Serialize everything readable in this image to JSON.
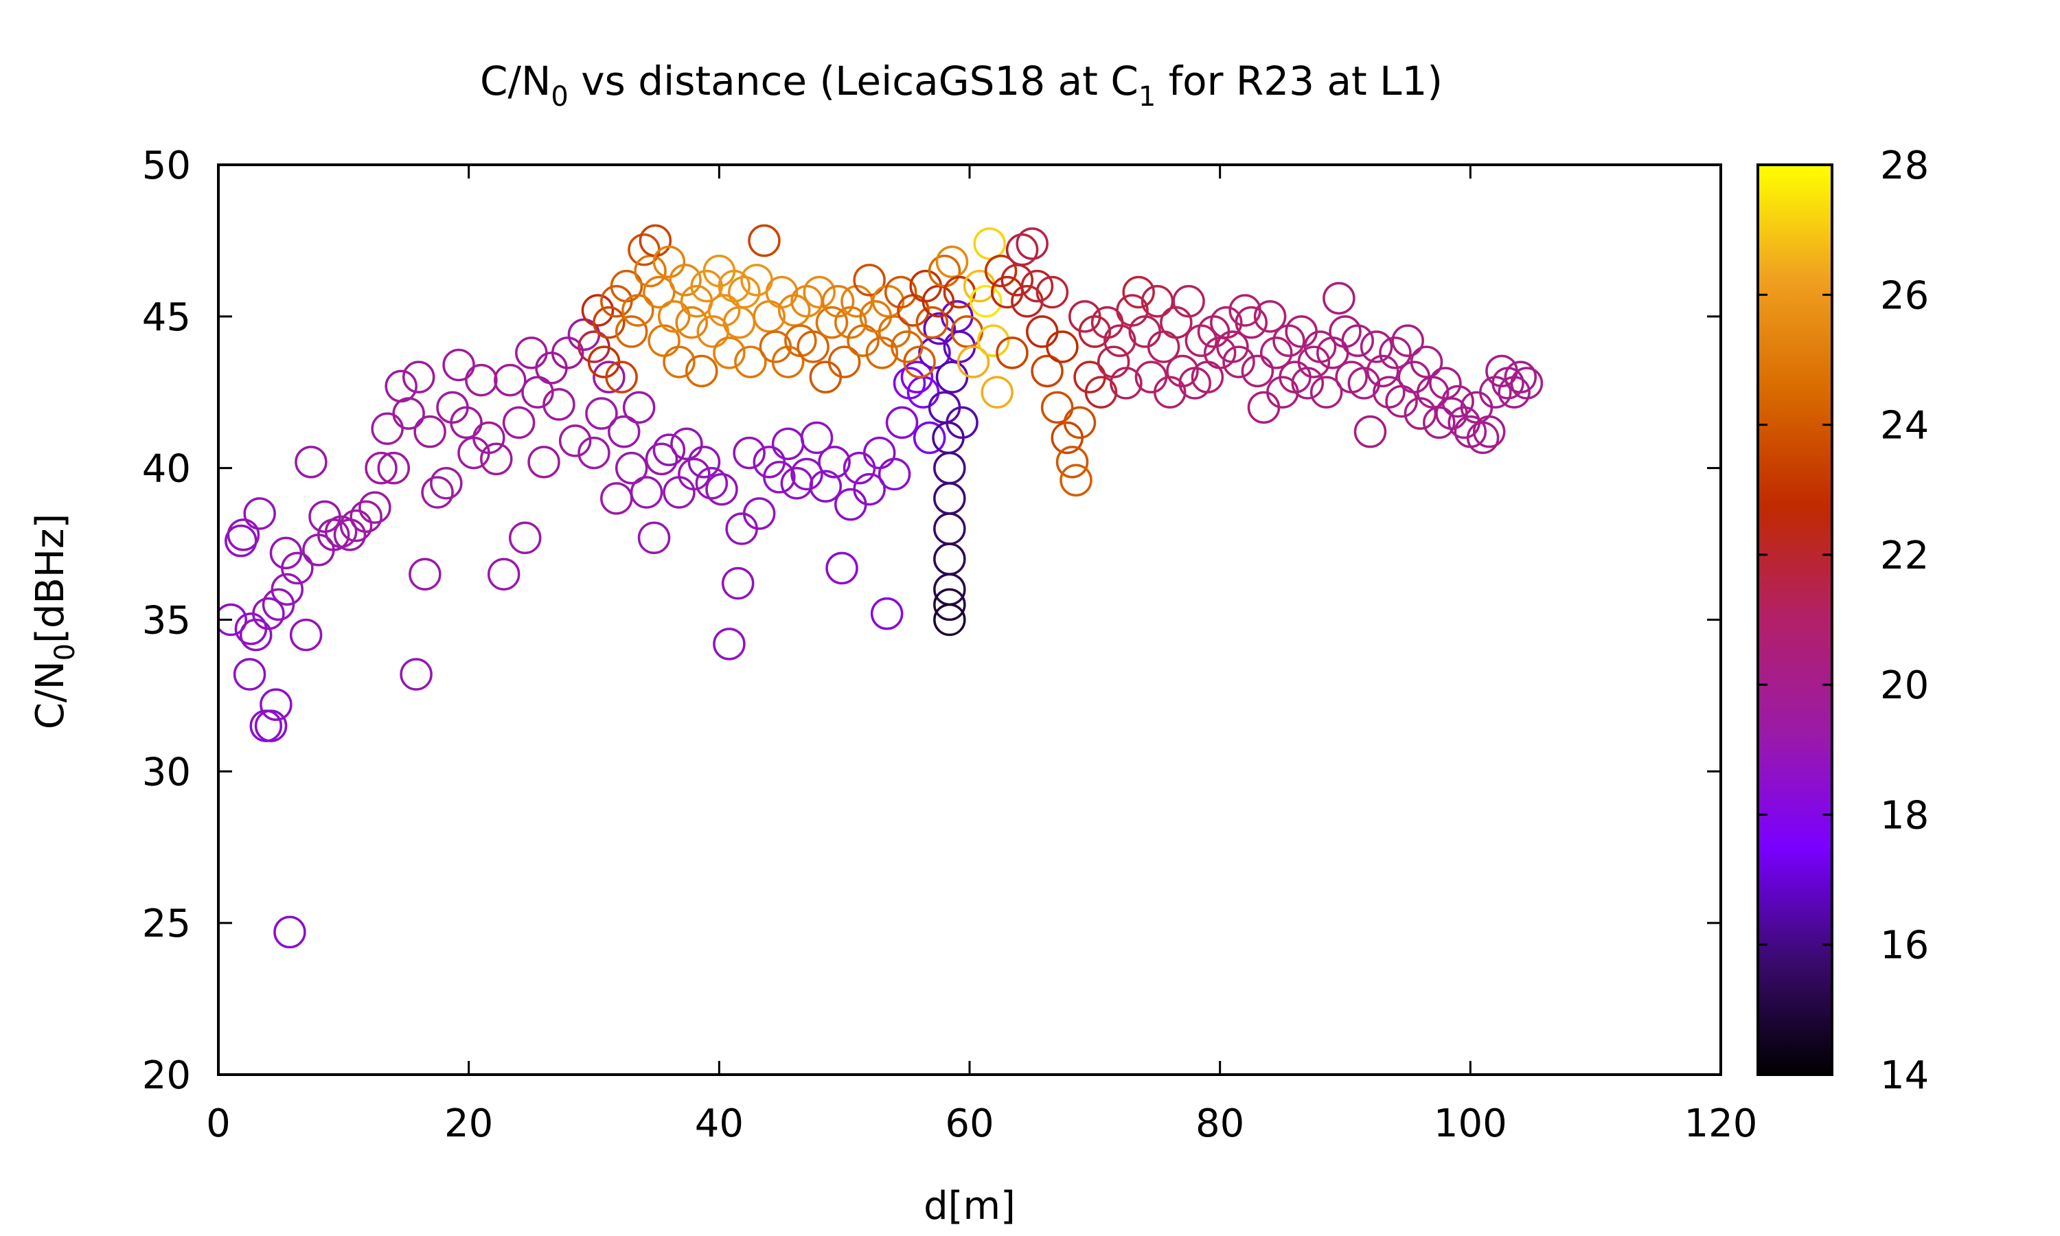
{
  "chart_data": {
    "type": "scatter",
    "title": "C/N0 vs distance (LeicaGS18 at C1 for R23 at L1)",
    "title_parts": {
      "a": "C/N",
      "a_sub": "0",
      "b": " vs distance (LeicaGS18 at C",
      "b_sub": "1",
      "c": " for R23 at L1)"
    },
    "xlabel": "d[m]",
    "ylabel": "C/N0[dBHz]",
    "ylabel_parts": {
      "a": "C/N",
      "a_sub": "0",
      "b": "[dBHz]"
    },
    "xlim": [
      0,
      120
    ],
    "ylim": [
      20,
      50
    ],
    "xticks": [
      0,
      20,
      40,
      60,
      80,
      100,
      120
    ],
    "yticks": [
      20,
      25,
      30,
      35,
      40,
      45,
      50
    ],
    "colorbar": {
      "range": [
        14,
        28
      ],
      "ticks": [
        14,
        16,
        18,
        20,
        22,
        24,
        26,
        28
      ],
      "palette": [
        "#000000",
        "#3a0a6e",
        "#7a00ff",
        "#9a1aa8",
        "#b3206a",
        "#c02a00",
        "#d86a00",
        "#f0a020",
        "#ffff00"
      ]
    },
    "grid": false,
    "marker": "open-circle",
    "points": [
      [
        1.0,
        35.0,
        18.6
      ],
      [
        1.8,
        37.6,
        18.7
      ],
      [
        2.0,
        37.8,
        18.8
      ],
      [
        2.6,
        34.7,
        18.6
      ],
      [
        3.0,
        34.5,
        18.7
      ],
      [
        3.3,
        38.5,
        18.9
      ],
      [
        2.5,
        33.2,
        18.6
      ],
      [
        3.8,
        31.5,
        18.5
      ],
      [
        4.2,
        31.5,
        18.4
      ],
      [
        4.6,
        32.2,
        18.6
      ],
      [
        4.0,
        35.2,
        18.8
      ],
      [
        4.8,
        35.5,
        18.9
      ],
      [
        5.5,
        36.0,
        19.0
      ],
      [
        5.7,
        24.7,
        18.5
      ],
      [
        5.4,
        37.2,
        19.0
      ],
      [
        6.3,
        36.7,
        19.1
      ],
      [
        7.0,
        34.5,
        18.9
      ],
      [
        7.4,
        40.2,
        19.2
      ],
      [
        8.0,
        37.3,
        19.1
      ],
      [
        8.5,
        38.4,
        19.2
      ],
      [
        9.2,
        37.8,
        19.2
      ],
      [
        9.8,
        37.9,
        19.3
      ],
      [
        10.5,
        37.8,
        19.3
      ],
      [
        11.0,
        38.1,
        19.4
      ],
      [
        11.8,
        38.4,
        19.4
      ],
      [
        12.5,
        38.7,
        19.4
      ],
      [
        13.0,
        40.0,
        19.5
      ],
      [
        13.5,
        41.3,
        19.5
      ],
      [
        14.0,
        40.0,
        19.5
      ],
      [
        14.6,
        42.7,
        19.5
      ],
      [
        15.2,
        41.8,
        19.6
      ],
      [
        15.8,
        33.2,
        19.0
      ],
      [
        16.0,
        43.0,
        19.6
      ],
      [
        16.5,
        36.5,
        19.2
      ],
      [
        16.9,
        41.2,
        19.6
      ],
      [
        17.5,
        39.2,
        19.5
      ],
      [
        18.2,
        39.5,
        19.5
      ],
      [
        18.7,
        42.0,
        19.6
      ],
      [
        19.2,
        43.4,
        19.6
      ],
      [
        19.8,
        41.5,
        19.6
      ],
      [
        20.4,
        40.5,
        19.6
      ],
      [
        21.0,
        42.9,
        19.6
      ],
      [
        21.6,
        41.0,
        19.6
      ],
      [
        22.2,
        40.3,
        19.6
      ],
      [
        22.8,
        36.5,
        19.2
      ],
      [
        23.3,
        42.9,
        19.6
      ],
      [
        24.0,
        41.5,
        19.6
      ],
      [
        24.5,
        37.7,
        19.3
      ],
      [
        25.0,
        43.8,
        19.6
      ],
      [
        25.5,
        42.5,
        19.6
      ],
      [
        26.0,
        40.2,
        19.6
      ],
      [
        26.6,
        43.3,
        19.6
      ],
      [
        27.2,
        42.1,
        19.6
      ],
      [
        27.9,
        43.8,
        19.6
      ],
      [
        28.5,
        40.9,
        19.6
      ],
      [
        29.2,
        44.4,
        19.4
      ],
      [
        30.0,
        40.5,
        19.4
      ],
      [
        30.6,
        41.8,
        19.4
      ],
      [
        31.2,
        43.0,
        19.3
      ],
      [
        31.8,
        39.0,
        19.3
      ],
      [
        32.4,
        41.2,
        19.2
      ],
      [
        33.0,
        40.0,
        19.2
      ],
      [
        33.6,
        42.0,
        19.2
      ],
      [
        34.2,
        39.2,
        19.1
      ],
      [
        34.8,
        37.7,
        19.1
      ],
      [
        35.4,
        40.3,
        19.1
      ],
      [
        36.0,
        40.6,
        19.0
      ],
      [
        36.8,
        39.2,
        19.0
      ],
      [
        37.4,
        40.8,
        19.0
      ],
      [
        38.0,
        39.8,
        19.0
      ],
      [
        38.8,
        40.2,
        18.9
      ],
      [
        39.4,
        39.5,
        18.9
      ],
      [
        40.2,
        39.3,
        18.9
      ],
      [
        40.8,
        34.2,
        18.8
      ],
      [
        41.5,
        36.2,
        18.8
      ],
      [
        41.8,
        38.0,
        18.8
      ],
      [
        42.4,
        40.5,
        18.8
      ],
      [
        43.2,
        38.5,
        18.8
      ],
      [
        44.0,
        40.2,
        18.8
      ],
      [
        44.8,
        39.7,
        18.8
      ],
      [
        45.5,
        40.8,
        18.7
      ],
      [
        46.2,
        39.5,
        18.7
      ],
      [
        47.0,
        39.8,
        18.7
      ],
      [
        47.8,
        41.0,
        18.7
      ],
      [
        48.5,
        39.4,
        18.7
      ],
      [
        49.2,
        40.2,
        18.6
      ],
      [
        49.8,
        36.7,
        18.4
      ],
      [
        50.5,
        38.8,
        18.6
      ],
      [
        51.2,
        40.0,
        18.6
      ],
      [
        52.0,
        39.3,
        18.6
      ],
      [
        52.8,
        40.5,
        18.6
      ],
      [
        53.4,
        35.2,
        18.2
      ],
      [
        54.0,
        39.8,
        18.5
      ],
      [
        54.6,
        41.5,
        18.4
      ],
      [
        55.2,
        42.8,
        18.0
      ],
      [
        55.8,
        43.0,
        17.8
      ],
      [
        56.3,
        42.5,
        17.6
      ],
      [
        56.8,
        41.0,
        17.4
      ],
      [
        57.2,
        43.8,
        17.0
      ],
      [
        57.6,
        44.6,
        16.8
      ],
      [
        58.0,
        42.0,
        16.6
      ],
      [
        58.3,
        41.0,
        16.2
      ],
      [
        58.4,
        40.0,
        16.0
      ],
      [
        58.4,
        39.0,
        15.8
      ],
      [
        58.4,
        38.0,
        15.6
      ],
      [
        58.4,
        37.0,
        15.4
      ],
      [
        58.4,
        36.0,
        15.2
      ],
      [
        58.4,
        35.5,
        15.0
      ],
      [
        58.4,
        35.0,
        14.8
      ],
      [
        58.6,
        43.0,
        16.5
      ],
      [
        59.0,
        45.0,
        17.0
      ],
      [
        59.2,
        44.0,
        16.8
      ],
      [
        59.4,
        41.5,
        16.5
      ],
      [
        30.0,
        44.0,
        21.5
      ],
      [
        30.3,
        45.2,
        22.5
      ],
      [
        30.8,
        43.5,
        23.0
      ],
      [
        31.2,
        44.8,
        23.5
      ],
      [
        31.8,
        45.5,
        24.0
      ],
      [
        32.2,
        43.0,
        23.5
      ],
      [
        32.6,
        46.0,
        24.2
      ],
      [
        33.0,
        44.5,
        24.5
      ],
      [
        33.5,
        45.2,
        24.8
      ],
      [
        34.0,
        47.2,
        23.8
      ],
      [
        34.5,
        46.5,
        25.0
      ],
      [
        34.9,
        47.5,
        23.5
      ],
      [
        35.2,
        45.8,
        25.2
      ],
      [
        35.6,
        44.2,
        25.0
      ],
      [
        36.0,
        46.8,
        25.3
      ],
      [
        36.4,
        45.0,
        25.4
      ],
      [
        36.8,
        43.5,
        24.8
      ],
      [
        37.3,
        46.2,
        25.5
      ],
      [
        37.8,
        44.8,
        25.3
      ],
      [
        38.2,
        45.5,
        25.6
      ],
      [
        38.6,
        43.2,
        24.5
      ],
      [
        39.0,
        46.0,
        25.8
      ],
      [
        39.5,
        44.5,
        25.6
      ],
      [
        40.0,
        46.5,
        25.9
      ],
      [
        40.4,
        45.2,
        25.7
      ],
      [
        40.8,
        43.8,
        25.2
      ],
      [
        41.2,
        46.0,
        25.9
      ],
      [
        41.6,
        44.8,
        25.6
      ],
      [
        42.0,
        45.8,
        25.8
      ],
      [
        42.5,
        43.5,
        25.0
      ],
      [
        43.0,
        46.2,
        25.9
      ],
      [
        43.6,
        47.5,
        23.5
      ],
      [
        44.0,
        45.0,
        25.5
      ],
      [
        44.5,
        44.0,
        24.5
      ],
      [
        45.0,
        45.8,
        25.7
      ],
      [
        45.5,
        43.5,
        24.8
      ],
      [
        46.0,
        45.2,
        25.5
      ],
      [
        46.5,
        44.2,
        24.5
      ],
      [
        47.0,
        45.5,
        25.5
      ],
      [
        47.5,
        44.0,
        24.3
      ],
      [
        48.0,
        45.8,
        25.6
      ],
      [
        48.5,
        43.0,
        24.0
      ],
      [
        49.0,
        44.8,
        24.8
      ],
      [
        49.5,
        45.5,
        25.2
      ],
      [
        50.0,
        43.5,
        24.2
      ],
      [
        50.5,
        44.8,
        25.0
      ],
      [
        51.0,
        45.5,
        25.3
      ],
      [
        51.5,
        44.2,
        24.6
      ],
      [
        52.0,
        46.2,
        23.8
      ],
      [
        52.5,
        45.0,
        25.0
      ],
      [
        53.0,
        43.8,
        24.5
      ],
      [
        53.5,
        45.5,
        25.2
      ],
      [
        54.0,
        44.5,
        24.8
      ],
      [
        54.5,
        45.8,
        24.0
      ],
      [
        55.0,
        44.0,
        24.5
      ],
      [
        55.5,
        45.2,
        23.5
      ],
      [
        56.0,
        43.5,
        24.2
      ],
      [
        56.5,
        46.0,
        23.0
      ],
      [
        57.0,
        44.8,
        24.0
      ],
      [
        57.5,
        45.5,
        22.8
      ],
      [
        58.0,
        46.5,
        24.5
      ],
      [
        58.6,
        46.8,
        25.5
      ],
      [
        59.2,
        45.8,
        23.0
      ],
      [
        59.8,
        44.5,
        24.0
      ],
      [
        60.3,
        43.5,
        26.5
      ],
      [
        60.8,
        46.0,
        26.8
      ],
      [
        61.3,
        45.5,
        27.5
      ],
      [
        61.6,
        47.4,
        27.2
      ],
      [
        61.9,
        44.2,
        27.0
      ],
      [
        62.2,
        42.5,
        26.5
      ],
      [
        62.5,
        46.5,
        23.0
      ],
      [
        63.0,
        45.8,
        22.5
      ],
      [
        63.4,
        43.8,
        23.5
      ],
      [
        63.8,
        46.2,
        22.0
      ],
      [
        64.2,
        47.2,
        21.8
      ],
      [
        64.6,
        45.5,
        22.2
      ],
      [
        65.0,
        47.4,
        21.5
      ],
      [
        65.4,
        46.0,
        22.0
      ],
      [
        65.8,
        44.5,
        22.5
      ],
      [
        66.2,
        43.2,
        23.5
      ],
      [
        66.6,
        45.8,
        21.8
      ],
      [
        67.0,
        42.0,
        23.8
      ],
      [
        67.4,
        44.0,
        22.8
      ],
      [
        67.8,
        41.0,
        23.5
      ],
      [
        68.2,
        40.2,
        24.0
      ],
      [
        68.5,
        39.6,
        24.2
      ],
      [
        68.8,
        41.5,
        23.8
      ],
      [
        69.2,
        45.0,
        21.5
      ],
      [
        69.6,
        43.0,
        22.2
      ],
      [
        70.0,
        44.5,
        21.8
      ],
      [
        70.5,
        42.5,
        22.0
      ],
      [
        71.0,
        44.8,
        21.5
      ],
      [
        71.5,
        43.5,
        21.5
      ],
      [
        72.0,
        44.2,
        21.3
      ],
      [
        72.5,
        42.8,
        21.2
      ],
      [
        73.0,
        45.2,
        21.5
      ],
      [
        73.5,
        45.8,
        21.8
      ],
      [
        74.0,
        44.5,
        21.3
      ],
      [
        74.5,
        43.0,
        21.0
      ],
      [
        75.0,
        45.5,
        21.5
      ],
      [
        75.5,
        44.0,
        21.2
      ],
      [
        76.0,
        42.5,
        21.0
      ],
      [
        76.5,
        44.8,
        21.3
      ],
      [
        77.0,
        43.2,
        21.0
      ],
      [
        77.5,
        45.5,
        21.2
      ],
      [
        78.0,
        42.8,
        20.8
      ],
      [
        78.5,
        44.2,
        21.0
      ],
      [
        79.0,
        43.0,
        20.8
      ],
      [
        79.5,
        44.5,
        21.0
      ],
      [
        80.0,
        43.8,
        20.8
      ],
      [
        80.5,
        44.8,
        20.9
      ],
      [
        81.0,
        44.0,
        20.8
      ],
      [
        81.5,
        43.5,
        20.7
      ],
      [
        82.0,
        45.2,
        20.9
      ],
      [
        82.5,
        44.8,
        20.8
      ],
      [
        83.0,
        43.2,
        20.6
      ],
      [
        83.5,
        42.0,
        20.5
      ],
      [
        84.0,
        45.0,
        20.8
      ],
      [
        84.5,
        43.8,
        20.6
      ],
      [
        85.0,
        42.5,
        20.5
      ],
      [
        85.5,
        44.2,
        20.6
      ],
      [
        86.0,
        43.0,
        20.5
      ],
      [
        86.5,
        44.5,
        20.6
      ],
      [
        87.0,
        42.8,
        20.4
      ],
      [
        87.5,
        43.5,
        20.5
      ],
      [
        88.0,
        44.0,
        20.5
      ],
      [
        88.5,
        42.5,
        20.4
      ],
      [
        89.0,
        43.8,
        20.4
      ],
      [
        89.5,
        45.6,
        20.5
      ],
      [
        90.0,
        44.5,
        20.4
      ],
      [
        90.5,
        43.0,
        20.3
      ],
      [
        91.0,
        44.2,
        20.4
      ],
      [
        91.5,
        42.8,
        20.3
      ],
      [
        92.0,
        41.2,
        20.2
      ],
      [
        92.5,
        44.0,
        20.3
      ],
      [
        93.0,
        43.2,
        20.3
      ],
      [
        93.5,
        42.5,
        20.2
      ],
      [
        94.0,
        43.8,
        20.3
      ],
      [
        94.5,
        42.2,
        20.2
      ],
      [
        95.0,
        44.2,
        20.3
      ],
      [
        95.5,
        43.0,
        20.2
      ],
      [
        96.0,
        41.8,
        20.2
      ],
      [
        96.5,
        43.5,
        20.2
      ],
      [
        97.0,
        42.5,
        20.1
      ],
      [
        97.5,
        41.5,
        20.1
      ],
      [
        98.0,
        42.8,
        20.1
      ],
      [
        98.5,
        41.8,
        20.1
      ],
      [
        99.0,
        42.2,
        20.1
      ],
      [
        99.5,
        41.5,
        20.0
      ],
      [
        100.0,
        41.2,
        20.0
      ],
      [
        100.5,
        42.0,
        20.0
      ],
      [
        101.0,
        41.0,
        20.0
      ],
      [
        101.5,
        41.2,
        20.0
      ],
      [
        102.0,
        42.5,
        20.0
      ],
      [
        102.5,
        43.2,
        20.0
      ],
      [
        103.0,
        42.8,
        20.0
      ],
      [
        103.5,
        42.5,
        20.0
      ],
      [
        104.0,
        43.0,
        20.0
      ],
      [
        104.5,
        42.8,
        20.0
      ]
    ]
  }
}
